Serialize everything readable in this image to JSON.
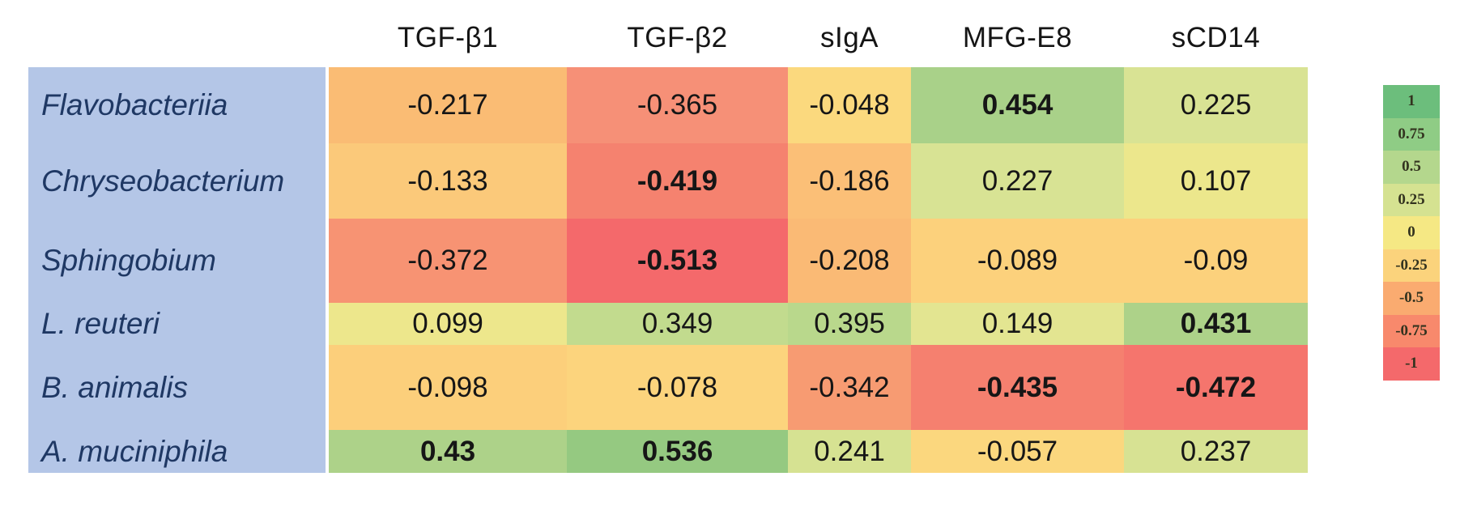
{
  "columns": [
    "TGF-β1",
    "TGF-β2",
    "sIgA",
    "MFG-E8",
    "sCD14"
  ],
  "rows": [
    {
      "label": "Flavobacteriia",
      "cells": [
        {
          "value": "-0.217",
          "bg": "#FABC74",
          "bold": false
        },
        {
          "value": "-0.365",
          "bg": "#F69077",
          "bold": false
        },
        {
          "value": "-0.048",
          "bg": "#FBD97E",
          "bold": false
        },
        {
          "value": "0.454",
          "bg": "#A9D189",
          "bold": true
        },
        {
          "value": "0.225",
          "bg": "#D9E394",
          "bold": false
        }
      ]
    },
    {
      "label": "Chryseobacterium",
      "cells": [
        {
          "value": "-0.133",
          "bg": "#FBC97A",
          "bold": false
        },
        {
          "value": "-0.419",
          "bg": "#F5826F",
          "bold": true
        },
        {
          "value": "-0.186",
          "bg": "#FBBF77",
          "bold": false
        },
        {
          "value": "0.227",
          "bg": "#D8E394",
          "bold": false
        },
        {
          "value": "0.107",
          "bg": "#ECE78C",
          "bold": false
        }
      ]
    },
    {
      "label": "Sphingobium",
      "cells": [
        {
          "value": "-0.372",
          "bg": "#F79373",
          "bold": false
        },
        {
          "value": "-0.513",
          "bg": "#F4696B",
          "bold": true
        },
        {
          "value": "-0.208",
          "bg": "#FABA75",
          "bold": false
        },
        {
          "value": "-0.089",
          "bg": "#FCD17C",
          "bold": false
        },
        {
          "value": "-0.09",
          "bg": "#FCD17C",
          "bold": false
        }
      ]
    },
    {
      "label": "L. reuteri",
      "cells": [
        {
          "value": "0.099",
          "bg": "#EDE78C",
          "bold": false
        },
        {
          "value": "0.349",
          "bg": "#C2DB8E",
          "bold": false
        },
        {
          "value": "0.395",
          "bg": "#B9D88C",
          "bold": false
        },
        {
          "value": "0.149",
          "bg": "#E3E591",
          "bold": false
        },
        {
          "value": "0.431",
          "bg": "#ADD289",
          "bold": true
        }
      ]
    },
    {
      "label": "B. animalis",
      "cells": [
        {
          "value": "-0.098",
          "bg": "#FCCF7B",
          "bold": false
        },
        {
          "value": "-0.078",
          "bg": "#FCD47D",
          "bold": false
        },
        {
          "value": "-0.342",
          "bg": "#F79B72",
          "bold": false
        },
        {
          "value": "-0.435",
          "bg": "#F5806F",
          "bold": true
        },
        {
          "value": "-0.472",
          "bg": "#F5756D",
          "bold": true
        }
      ]
    },
    {
      "label": "A. muciniphila",
      "cells": [
        {
          "value": "0.43",
          "bg": "#ADD289",
          "bold": true
        },
        {
          "value": "0.536",
          "bg": "#95C981",
          "bold": true
        },
        {
          "value": "0.241",
          "bg": "#D6E292",
          "bold": false
        },
        {
          "value": "-0.057",
          "bg": "#FBD77E",
          "bold": false
        },
        {
          "value": "0.237",
          "bg": "#D7E293",
          "bold": false
        }
      ]
    }
  ],
  "legend": {
    "items": [
      {
        "label": "1",
        "color": "#6CBE7C"
      },
      {
        "label": "0.75",
        "color": "#8FCC85"
      },
      {
        "label": "0.5",
        "color": "#B4D78D"
      },
      {
        "label": "0.25",
        "color": "#D5E291"
      },
      {
        "label": "0",
        "color": "#F5E884"
      },
      {
        "label": "-0.25",
        "color": "#FBD37C"
      },
      {
        "label": "-0.5",
        "color": "#FAAB70"
      },
      {
        "label": "-0.75",
        "color": "#F8896C"
      },
      {
        "label": "-1",
        "color": "#F4696B"
      }
    ]
  },
  "colors": {
    "row_label_bg": "#B4C6E7",
    "row_label_text": "#1F3864",
    "background": "#FFFFFF"
  },
  "chart_data": {
    "type": "heatmap",
    "title": "",
    "x_categories": [
      "TGF-β1",
      "TGF-β2",
      "sIgA",
      "MFG-E8",
      "sCD14"
    ],
    "y_categories": [
      "Flavobacteriia",
      "Chryseobacterium",
      "Sphingobium",
      "L. reuteri",
      "B. animalis",
      "A. muciniphila"
    ],
    "values": [
      [
        -0.217,
        -0.365,
        -0.048,
        0.454,
        0.225
      ],
      [
        -0.133,
        -0.419,
        -0.186,
        0.227,
        0.107
      ],
      [
        -0.372,
        -0.513,
        -0.208,
        -0.089,
        -0.09
      ],
      [
        0.099,
        0.349,
        0.395,
        0.149,
        0.431
      ],
      [
        -0.098,
        -0.078,
        -0.342,
        -0.435,
        -0.472
      ],
      [
        0.43,
        0.536,
        0.241,
        -0.057,
        0.237
      ]
    ],
    "bold_significant": [
      [
        false,
        false,
        false,
        true,
        false
      ],
      [
        false,
        true,
        false,
        false,
        false
      ],
      [
        false,
        true,
        false,
        false,
        false
      ],
      [
        false,
        false,
        false,
        false,
        true
      ],
      [
        false,
        false,
        false,
        true,
        true
      ],
      [
        true,
        true,
        false,
        false,
        false
      ]
    ],
    "colorscale": {
      "min": -1,
      "max": 1,
      "ticks": [
        1,
        0.75,
        0.5,
        0.25,
        0,
        -0.25,
        -0.5,
        -0.75,
        -1
      ],
      "low_color": "#F4696B",
      "mid_color": "#F5E884",
      "high_color": "#6CBE7C"
    },
    "legend_position": "right",
    "grid": false
  }
}
